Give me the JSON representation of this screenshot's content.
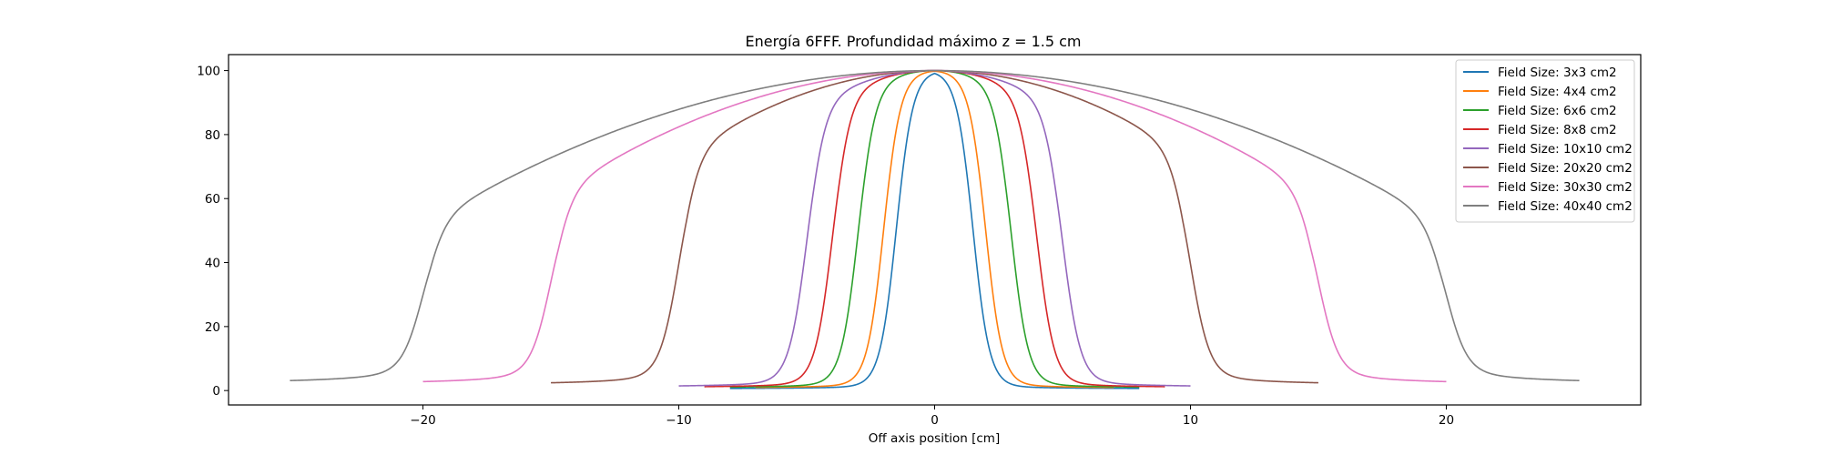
{
  "chart_data": {
    "type": "line",
    "title": "Energía 6FFF. Profundidad máximo z = 1.5 cm",
    "xlabel": "Off axis position [cm]",
    "ylabel": "",
    "xlim": [
      -27.6,
      27.6
    ],
    "ylim": [
      -4.5,
      105
    ],
    "xticks": [
      -20,
      -10,
      0,
      10,
      20
    ],
    "xtick_labels": [
      "−20",
      "−10",
      "0",
      "10",
      "20"
    ],
    "yticks": [
      0,
      20,
      40,
      60,
      80,
      100
    ],
    "ytick_labels": [
      "0",
      "20",
      "40",
      "60",
      "80",
      "100"
    ],
    "grid": false,
    "legend_position": "top-right",
    "series": [
      {
        "name": "Field Size: 3x3 cm2",
        "color": "#1f77b4",
        "field_half_width": 1.5,
        "x_extent": 8.0,
        "tail": 0.6,
        "shoulder": 99,
        "penumbra": 0.32
      },
      {
        "name": "Field Size: 4x4 cm2",
        "color": "#ff7f0e",
        "field_half_width": 2.0,
        "x_extent": 7.0,
        "tail": 0.8,
        "shoulder": 97.5,
        "penumbra": 0.32
      },
      {
        "name": "Field Size: 6x6 cm2",
        "color": "#2ca02c",
        "field_half_width": 3.0,
        "x_extent": 8.0,
        "tail": 0.9,
        "shoulder": 95,
        "penumbra": 0.33
      },
      {
        "name": "Field Size: 8x8 cm2",
        "color": "#d62728",
        "field_half_width": 4.0,
        "x_extent": 9.0,
        "tail": 1.0,
        "shoulder": 92.5,
        "penumbra": 0.34
      },
      {
        "name": "Field Size: 10x10 cm2",
        "color": "#9467bd",
        "field_half_width": 5.0,
        "x_extent": 10.0,
        "tail": 1.2,
        "shoulder": 90,
        "penumbra": 0.35
      },
      {
        "name": "Field Size: 20x20 cm2",
        "color": "#8c564b",
        "field_half_width": 10.0,
        "x_extent": 15.0,
        "tail": 2.0,
        "shoulder": 74,
        "penumbra": 0.37
      },
      {
        "name": "Field Size: 30x30 cm2",
        "color": "#e377c2",
        "field_half_width": 15.0,
        "x_extent": 20.0,
        "tail": 2.3,
        "shoulder": 62,
        "penumbra": 0.39
      },
      {
        "name": "Field Size: 40x40 cm2",
        "color": "#7f7f7f",
        "field_half_width": 20.0,
        "x_extent": 25.2,
        "tail": 2.6,
        "shoulder": 53,
        "penumbra": 0.4
      }
    ]
  }
}
